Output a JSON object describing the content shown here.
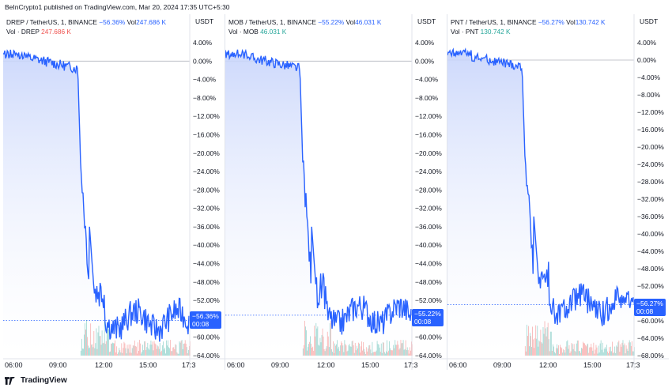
{
  "publish_note": "BeInCrypto1 published on TradingView.com, Mar 20, 2024 17:35 UTC+5:30",
  "brand": "TradingView",
  "panels": [
    {
      "symbol": "DREP / TetherUS, 1, BINANCE",
      "change": "−56.36%",
      "vol_label": "Vol",
      "vol_value": "247.686 K",
      "vol_series": "Vol · DREP",
      "vol_series_value": "247.686 K",
      "vol_color": "#ef5350",
      "unit": "USDT",
      "y_labels": [
        "4.00%",
        "0.00%",
        "−4.00%",
        "−8.00%",
        "−12.00%",
        "−16.00%",
        "−20.00%",
        "−24.00%",
        "−28.00%",
        "−32.00%",
        "−36.00%",
        "−40.00%",
        "−44.00%",
        "−48.00%",
        "−52.00%",
        "−56.00%",
        "−60.00%",
        "−64.00%"
      ],
      "x_labels": [
        "06:00",
        "09:00",
        "12:00",
        "15:00",
        "17:3"
      ],
      "badge_value": "−56.36%",
      "badge_time": "00:08"
    },
    {
      "symbol": "MOB / TetherUS, 1, BINANCE",
      "change": "−55.22%",
      "vol_label": "Vol",
      "vol_value": "46.031 K",
      "vol_series": "Vol · MOB",
      "vol_series_value": "46.031 K",
      "vol_color": "#26a69a",
      "unit": "USDT",
      "y_labels": [
        "4.00%",
        "0.00%",
        "−4.00%",
        "−8.00%",
        "−12.00%",
        "−16.00%",
        "−20.00%",
        "−24.00%",
        "−28.00%",
        "−32.00%",
        "−36.00%",
        "−40.00%",
        "−44.00%",
        "−48.00%",
        "−52.00%",
        "−56.00%",
        "−60.00%",
        "−64.00%"
      ],
      "x_labels": [
        "06:00",
        "09:00",
        "12:00",
        "15:00",
        "17:3"
      ],
      "badge_value": "−55.22%",
      "badge_time": "00:08"
    },
    {
      "symbol": "PNT / TetherUS, 1, BINANCE",
      "change": "−56.27%",
      "vol_label": "Vol",
      "vol_value": "130.742 K",
      "vol_series": "Vol · PNT",
      "vol_series_value": "130.742 K",
      "vol_color": "#26a69a",
      "unit": "USDT",
      "y_labels": [
        "4.00%",
        "0.00%",
        "−4.00%",
        "−8.00%",
        "−12.00%",
        "−16.00%",
        "−20.00%",
        "−24.00%",
        "−28.00%",
        "−32.00%",
        "−36.00%",
        "−40.00%",
        "−44.00%",
        "−48.00%",
        "−52.00%",
        "−56.00%",
        "−60.00%",
        "−64.00%",
        "−68.00%"
      ],
      "x_labels": [
        "06:00",
        "09:00",
        "12:00",
        "15:00",
        "17:3"
      ],
      "badge_value": "−56.27%",
      "badge_time": "00:08"
    }
  ],
  "colors": {
    "line": "#2962ff",
    "fill_top": "#c7d4fb",
    "fill_bottom": "#ffffff",
    "vol_up": "#26a69a",
    "vol_down": "#ef5350",
    "zero_line": "#b2b5be"
  }
}
